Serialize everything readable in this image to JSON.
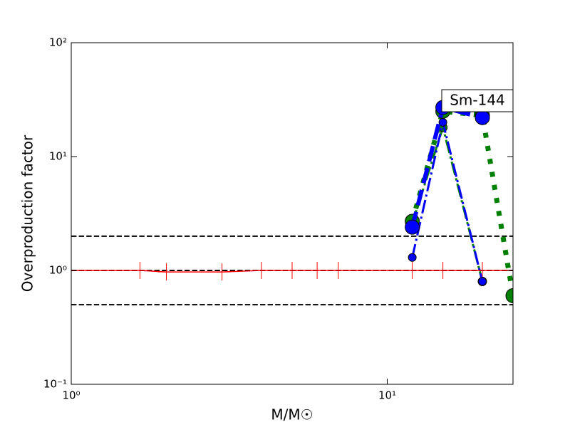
{
  "chart_data": {
    "type": "line",
    "annotation": "Sm-144",
    "xlabel": "M/M☉",
    "ylabel": "Overproduction factor",
    "xscale": "log",
    "yscale": "log",
    "xlim": [
      1,
      25
    ],
    "ylim": [
      0.1,
      100
    ],
    "xticks": [
      {
        "value": 1,
        "label": "10⁰"
      },
      {
        "value": 10,
        "label": "10¹"
      }
    ],
    "yticks": [
      {
        "value": 0.1,
        "label": "10⁻¹"
      },
      {
        "value": 1,
        "label": "10⁰"
      },
      {
        "value": 10,
        "label": "10¹"
      },
      {
        "value": 100,
        "label": "10²"
      }
    ],
    "hlines": {
      "values": [
        2,
        1,
        0.5
      ],
      "color": "#000000",
      "linestyle": "dashed"
    },
    "series": [
      {
        "color": "#ff0000",
        "linestyle": "solid",
        "linewidth": 1.5,
        "marker": "plus",
        "markersize": 12,
        "x": [
          1,
          1.65,
          2,
          3,
          4,
          5,
          6,
          7,
          12,
          15,
          20,
          25
        ],
        "values": [
          1,
          1,
          0.97,
          0.97,
          1,
          1,
          1,
          1,
          1,
          1,
          1,
          1
        ]
      },
      {
        "color": "#008000",
        "linestyle": "dashdot",
        "linewidth": 3,
        "marker": "circle",
        "markersize": 6,
        "x": [
          12,
          15,
          20
        ],
        "values": [
          2.6,
          18,
          0.8
        ]
      },
      {
        "color": "#008000",
        "linestyle": "dotted",
        "linewidth": 7,
        "marker": "circle",
        "markersize": 10,
        "x": [
          12,
          15,
          20,
          25
        ],
        "values": [
          2.7,
          25,
          23,
          0.6
        ]
      },
      {
        "color": "#0000ff",
        "linestyle": "dashdot",
        "linewidth": 3,
        "marker": "circle",
        "markersize": 5.5,
        "x": [
          12,
          15,
          20
        ],
        "values": [
          1.3,
          20,
          0.8
        ]
      },
      {
        "color": "#0000ff",
        "linestyle": "dashed",
        "linewidth": 6,
        "marker": "circle",
        "markersize": 10,
        "x": [
          12,
          15,
          20
        ],
        "values": [
          2.4,
          27,
          22
        ]
      }
    ]
  }
}
